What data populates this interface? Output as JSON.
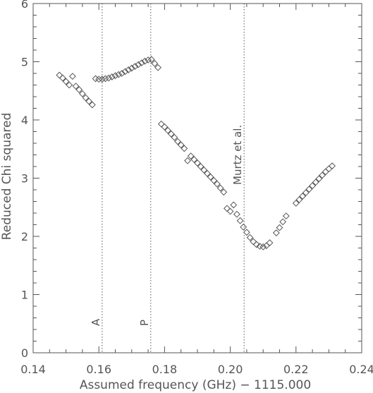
{
  "chart_data": {
    "type": "scatter",
    "title": "",
    "xlabel": "Assumed frequency (GHz) − 1115.000",
    "ylabel": "Reduced Chi squared",
    "xlim": [
      0.14,
      0.24
    ],
    "ylim": [
      0,
      6
    ],
    "x_ticks": [
      0.14,
      0.16,
      0.18,
      0.2,
      0.22,
      0.24
    ],
    "x_tick_labels": [
      "0.14",
      "0.16",
      "0.18",
      "0.20",
      "0.22",
      "0.24"
    ],
    "y_ticks": [
      0,
      1,
      2,
      3,
      4,
      5,
      6
    ],
    "y_tick_labels": [
      "0",
      "1",
      "2",
      "3",
      "4",
      "5",
      "6"
    ],
    "grid": false,
    "marker": "open-diamond",
    "color": "#555555",
    "annotations": [
      {
        "x": 0.161,
        "label": "A"
      },
      {
        "x": 0.1758,
        "label": "P"
      },
      {
        "x": 0.2042,
        "label": "Murtz et al."
      }
    ],
    "points": [
      [
        0.148,
        4.77
      ],
      [
        0.149,
        4.72
      ],
      [
        0.15,
        4.66
      ],
      [
        0.151,
        4.6
      ],
      [
        0.152,
        4.75
      ],
      [
        0.153,
        4.58
      ],
      [
        0.154,
        4.52
      ],
      [
        0.155,
        4.45
      ],
      [
        0.156,
        4.38
      ],
      [
        0.157,
        4.32
      ],
      [
        0.158,
        4.26
      ],
      [
        0.159,
        4.71
      ],
      [
        0.16,
        4.7
      ],
      [
        0.161,
        4.7
      ],
      [
        0.162,
        4.71
      ],
      [
        0.163,
        4.72
      ],
      [
        0.164,
        4.74
      ],
      [
        0.165,
        4.76
      ],
      [
        0.166,
        4.78
      ],
      [
        0.167,
        4.8
      ],
      [
        0.168,
        4.83
      ],
      [
        0.169,
        4.86
      ],
      [
        0.17,
        4.89
      ],
      [
        0.171,
        4.92
      ],
      [
        0.172,
        4.95
      ],
      [
        0.173,
        4.98
      ],
      [
        0.174,
        5.01
      ],
      [
        0.175,
        5.03
      ],
      [
        0.176,
        5.04
      ],
      [
        0.177,
        4.97
      ],
      [
        0.178,
        4.9
      ],
      [
        0.179,
        3.93
      ],
      [
        0.18,
        3.88
      ],
      [
        0.181,
        3.82
      ],
      [
        0.182,
        3.76
      ],
      [
        0.183,
        3.7
      ],
      [
        0.184,
        3.63
      ],
      [
        0.185,
        3.57
      ],
      [
        0.186,
        3.51
      ],
      [
        0.187,
        3.3
      ],
      [
        0.188,
        3.38
      ],
      [
        0.189,
        3.32
      ],
      [
        0.19,
        3.26
      ],
      [
        0.191,
        3.2
      ],
      [
        0.192,
        3.14
      ],
      [
        0.193,
        3.08
      ],
      [
        0.194,
        3.02
      ],
      [
        0.195,
        2.96
      ],
      [
        0.196,
        2.9
      ],
      [
        0.197,
        2.83
      ],
      [
        0.198,
        2.76
      ],
      [
        0.199,
        2.48
      ],
      [
        0.2,
        2.43
      ],
      [
        0.201,
        2.54
      ],
      [
        0.202,
        2.38
      ],
      [
        0.203,
        2.27
      ],
      [
        0.204,
        2.16
      ],
      [
        0.205,
        2.07
      ],
      [
        0.206,
        1.98
      ],
      [
        0.207,
        1.91
      ],
      [
        0.208,
        1.86
      ],
      [
        0.209,
        1.83
      ],
      [
        0.21,
        1.82
      ],
      [
        0.211,
        1.84
      ],
      [
        0.212,
        1.89
      ],
      [
        0.214,
        2.06
      ],
      [
        0.215,
        2.15
      ],
      [
        0.216,
        2.25
      ],
      [
        0.217,
        2.35
      ],
      [
        0.22,
        2.57
      ],
      [
        0.221,
        2.63
      ],
      [
        0.222,
        2.69
      ],
      [
        0.223,
        2.75
      ],
      [
        0.224,
        2.81
      ],
      [
        0.225,
        2.87
      ],
      [
        0.226,
        2.93
      ],
      [
        0.227,
        2.99
      ],
      [
        0.228,
        3.05
      ],
      [
        0.229,
        3.11
      ],
      [
        0.23,
        3.16
      ],
      [
        0.231,
        3.21
      ]
    ]
  }
}
